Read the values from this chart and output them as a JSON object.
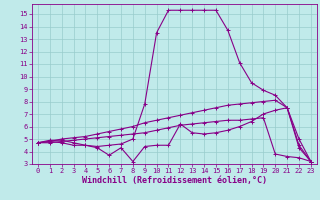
{
  "xlabel": "Windchill (Refroidissement éolien,°C)",
  "bg_color": "#c0eaea",
  "line_color": "#880088",
  "grid_color": "#99cccc",
  "spine_color": "#880088",
  "ylim": [
    3,
    15.8
  ],
  "xlim": [
    -0.5,
    23.5
  ],
  "yticks": [
    3,
    4,
    5,
    6,
    7,
    8,
    9,
    10,
    11,
    12,
    13,
    14,
    15
  ],
  "xticks": [
    0,
    1,
    2,
    3,
    4,
    5,
    6,
    7,
    8,
    9,
    10,
    11,
    12,
    13,
    14,
    15,
    16,
    17,
    18,
    19,
    20,
    21,
    22,
    23
  ],
  "line1_x": [
    0,
    1,
    2,
    3,
    4,
    5,
    6,
    7,
    8,
    9,
    10,
    11,
    12,
    13,
    14,
    15,
    16,
    17,
    18,
    19,
    20,
    21,
    22,
    23
  ],
  "line1_y": [
    4.7,
    4.9,
    4.9,
    4.7,
    4.5,
    4.4,
    4.5,
    4.6,
    5.0,
    7.8,
    13.5,
    15.3,
    15.3,
    15.3,
    15.3,
    15.3,
    13.7,
    11.1,
    9.5,
    8.9,
    8.5,
    7.5,
    4.5,
    3.2
  ],
  "line2_x": [
    0,
    1,
    2,
    3,
    4,
    5,
    6,
    7,
    8,
    9,
    10,
    11,
    12,
    13,
    14,
    15,
    16,
    17,
    18,
    19,
    20,
    21,
    22,
    23
  ],
  "line2_y": [
    4.7,
    4.8,
    4.7,
    4.5,
    4.5,
    4.3,
    3.7,
    4.3,
    3.2,
    4.4,
    4.5,
    4.5,
    6.2,
    5.5,
    5.4,
    5.5,
    5.7,
    6.0,
    6.4,
    7.0,
    7.3,
    7.5,
    4.3,
    3.2
  ],
  "line3_x": [
    0,
    1,
    2,
    3,
    4,
    5,
    6,
    7,
    8,
    9,
    10,
    11,
    12,
    13,
    14,
    15,
    16,
    17,
    18,
    19,
    20,
    21,
    22,
    23
  ],
  "line3_y": [
    4.7,
    4.8,
    5.0,
    5.1,
    5.2,
    5.4,
    5.6,
    5.8,
    6.0,
    6.3,
    6.5,
    6.7,
    6.9,
    7.1,
    7.3,
    7.5,
    7.7,
    7.8,
    7.9,
    8.0,
    8.1,
    7.5,
    5.0,
    3.2
  ],
  "line4_x": [
    0,
    1,
    2,
    3,
    4,
    5,
    6,
    7,
    8,
    9,
    10,
    11,
    12,
    13,
    14,
    15,
    16,
    17,
    18,
    19,
    20,
    21,
    22,
    23
  ],
  "line4_y": [
    4.7,
    4.7,
    4.8,
    4.9,
    5.0,
    5.1,
    5.2,
    5.3,
    5.4,
    5.5,
    5.7,
    5.9,
    6.1,
    6.2,
    6.3,
    6.4,
    6.5,
    6.5,
    6.6,
    6.7,
    3.8,
    3.6,
    3.5,
    3.2
  ],
  "marker": "+",
  "markersize": 3,
  "markeredgewidth": 0.7,
  "linewidth": 0.8,
  "tick_fontsize": 5,
  "xlabel_fontsize": 6
}
